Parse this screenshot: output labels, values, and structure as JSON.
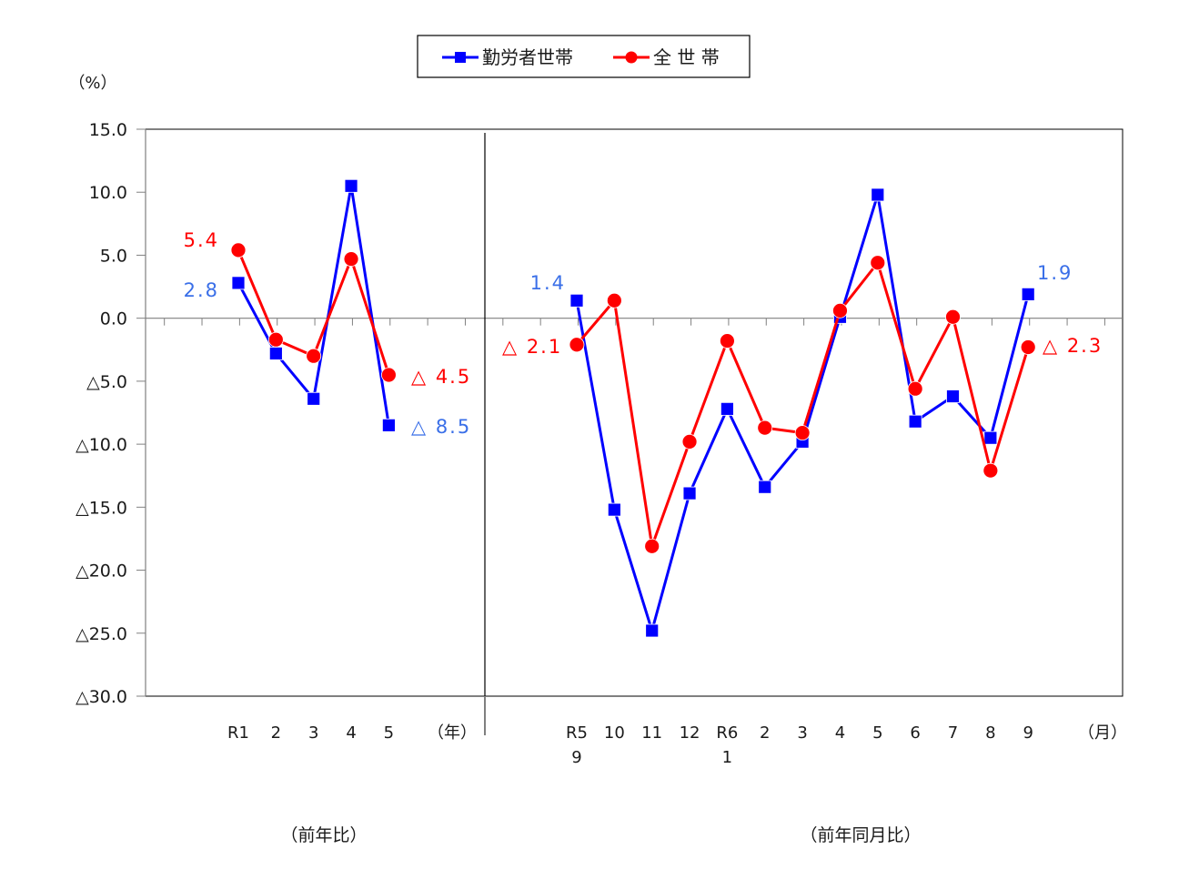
{
  "chart_data": {
    "type": "line",
    "legend": [
      {
        "name": "勤労者世帯",
        "color": "#0000ff",
        "marker": "square"
      },
      {
        "name": "全 世 帯",
        "color": "#ff0000",
        "marker": "circle"
      }
    ],
    "ylabel": "（%）",
    "ylim": [
      -30,
      15
    ],
    "yticks": [
      "15.0",
      "10.0",
      "5.0",
      "0.0",
      "△5.0",
      "△10.0",
      "△15.0",
      "△20.0",
      "△25.0",
      "△30.0"
    ],
    "panels": [
      {
        "name": "annual",
        "caption": "（前年比）",
        "unit_label": "（年）",
        "categories": [
          "R1",
          "2",
          "3",
          "4",
          "5"
        ],
        "series": [
          {
            "name": "勤労者世帯",
            "values": [
              2.8,
              -2.8,
              -6.4,
              10.5,
              -8.5
            ]
          },
          {
            "name": "全 世 帯",
            "values": [
              5.4,
              -1.7,
              -3.0,
              4.7,
              -4.5
            ]
          }
        ],
        "annotations": [
          {
            "text": "5.4",
            "series": "全 世 帯",
            "color": "#ff0000"
          },
          {
            "text": "2.8",
            "series": "勤労者世帯",
            "color": "#3a6fe8"
          },
          {
            "text": "△ 4.5",
            "series": "全 世 帯",
            "color": "#ff0000"
          },
          {
            "text": "△ 8.5",
            "series": "勤労者世帯",
            "color": "#3a6fe8"
          }
        ]
      },
      {
        "name": "monthly",
        "caption": "（前年同月比）",
        "unit_label": "（月）",
        "categories": [
          "R5 9",
          "10",
          "11",
          "12",
          "R6 1",
          "2",
          "3",
          "4",
          "5",
          "6",
          "7",
          "8",
          "9"
        ],
        "series": [
          {
            "name": "勤労者世帯",
            "values": [
              1.4,
              -15.2,
              -24.8,
              -13.9,
              -7.2,
              -13.4,
              -9.8,
              0.1,
              9.8,
              -8.2,
              -6.2,
              -9.5,
              1.9
            ]
          },
          {
            "name": "全 世 帯",
            "values": [
              -2.1,
              1.4,
              -18.1,
              -9.8,
              -1.8,
              -8.7,
              -9.1,
              0.6,
              4.4,
              -5.6,
              0.1,
              -12.1,
              -2.3
            ]
          }
        ],
        "annotations": [
          {
            "text": "1.4",
            "series": "勤労者世帯",
            "color": "#3a6fe8"
          },
          {
            "text": "△ 2.1",
            "series": "全 世 帯",
            "color": "#ff0000"
          },
          {
            "text": "1.9",
            "series": "勤労者世帯",
            "color": "#3a6fe8"
          },
          {
            "text": "△ 2.3",
            "series": "全 世 帯",
            "color": "#ff0000"
          }
        ]
      }
    ]
  }
}
